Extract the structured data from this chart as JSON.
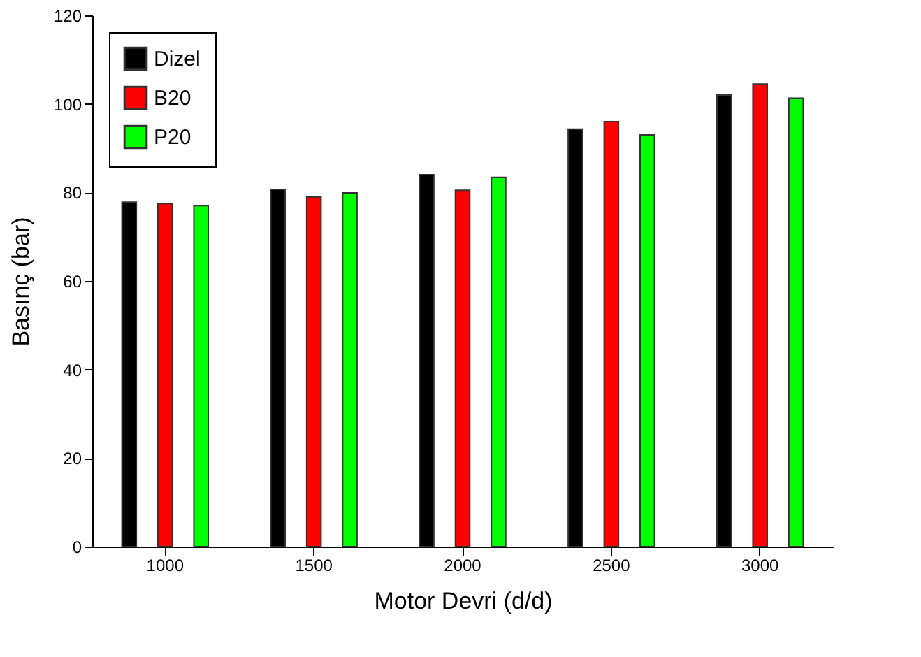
{
  "chart_data": {
    "type": "bar",
    "xlabel": "Motor Devri (d/d)",
    "ylabel": "Basınç (bar)",
    "categories": [
      "1000",
      "1500",
      "2000",
      "2500",
      "3000"
    ],
    "series": [
      {
        "name": "Dizel",
        "color": "#000000",
        "values": [
          77.8,
          80.7,
          84.0,
          94.3,
          102.0
        ]
      },
      {
        "name": "B20",
        "color": "#ff0000",
        "values": [
          77.5,
          79.0,
          80.5,
          96.0,
          104.5
        ]
      },
      {
        "name": "P20",
        "color": "#00ff00",
        "values": [
          77.0,
          79.9,
          83.4,
          93.0,
          101.3
        ]
      }
    ],
    "ylim": [
      0,
      120
    ],
    "yticks": [
      0,
      20,
      40,
      60,
      80,
      100,
      120
    ],
    "grid": false,
    "legend": "top left"
  }
}
